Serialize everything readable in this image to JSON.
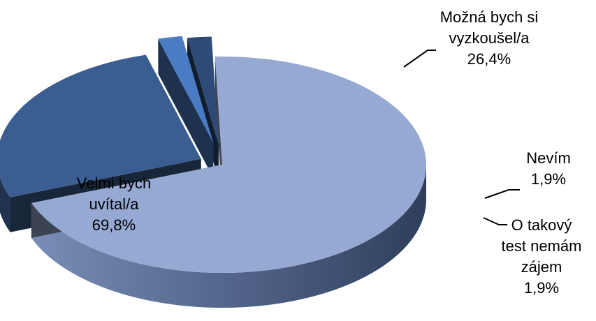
{
  "chart_data": {
    "type": "pie",
    "variant": "3d-exploded",
    "title": "",
    "slices": [
      {
        "label_lines": [
          "Velmi bych",
          "uvítal/a"
        ],
        "value": 69.8,
        "value_label": "69,8%",
        "color": "#95A9D2"
      },
      {
        "label_lines": [
          "Možná bych si",
          "vyzkoušel/a"
        ],
        "value": 26.4,
        "value_label": "26,4%",
        "color": "#3B5E92"
      },
      {
        "label_lines": [
          "Nevím"
        ],
        "value": 1.9,
        "value_label": "1,9%",
        "color": "#4A7CC4"
      },
      {
        "label_lines": [
          "O takový",
          "test nemám",
          "zájem"
        ],
        "value": 1.9,
        "value_label": "1,9%",
        "color": "#2E4B78"
      }
    ],
    "legend": "none",
    "data_labels": "outside-with-leader-lines"
  }
}
